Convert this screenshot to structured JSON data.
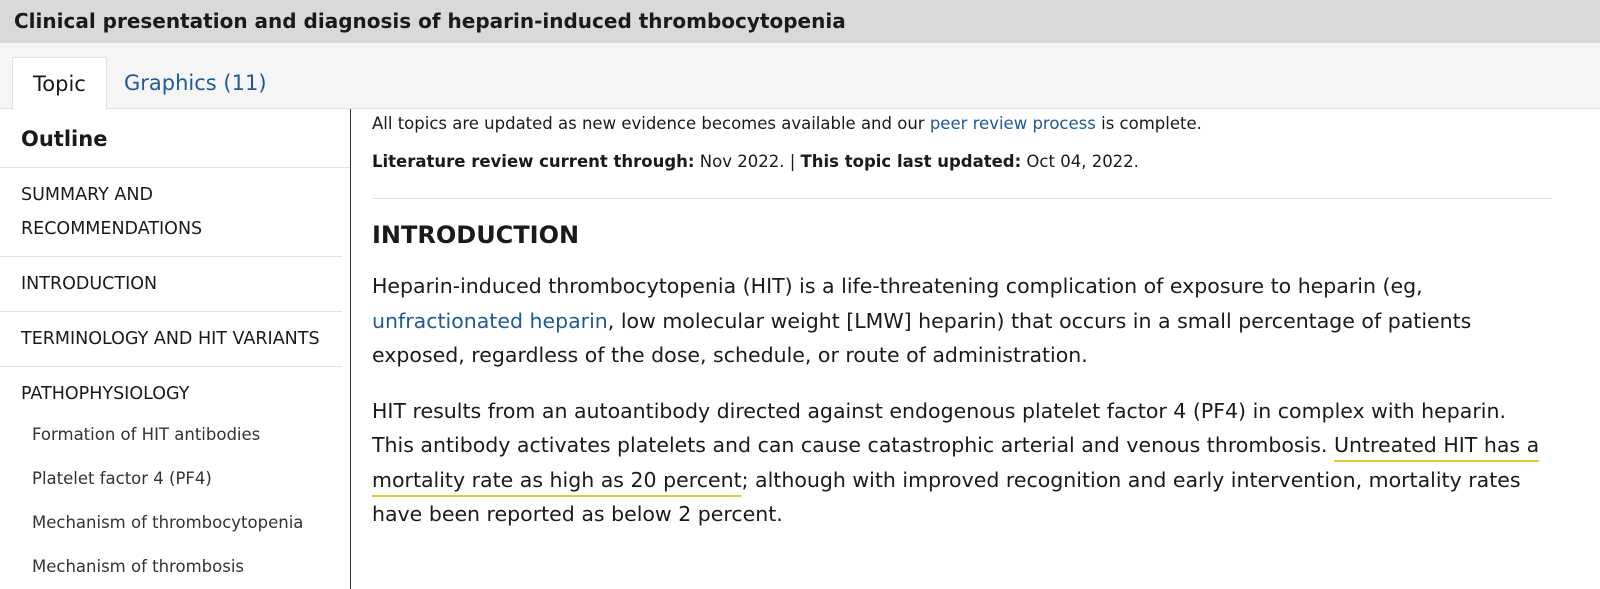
{
  "header": {
    "title": "Clinical presentation and diagnosis of heparin-induced thrombocytopenia"
  },
  "tabs": [
    "Topic",
    "Graphics (11)"
  ],
  "outline": {
    "title": "Outline",
    "items": [
      "SUMMARY AND RECOMMENDATIONS",
      "INTRODUCTION",
      "TERMINOLOGY AND HIT VARIANTS",
      "PATHOPHYSIOLOGY"
    ],
    "subitems": [
      "Formation of HIT antibodies",
      "Platelet factor 4 (PF4)",
      "Mechanism of thrombocytopenia",
      "Mechanism of thrombosis"
    ]
  },
  "content": {
    "notice": [
      "All topics are updated as new evidence becomes available and our ",
      "peer review process",
      " is complete."
    ],
    "dates": {
      "review_label": "Literature review current through:",
      "review_value": " Nov 2022. | ",
      "updated_label": "This topic last updated:",
      "updated_value": " Oct 04, 2022."
    },
    "heading": "INTRODUCTION",
    "paragraph1": [
      "Heparin-induced thrombocytopenia (HIT) is a life-threatening complication of exposure to heparin (eg, ",
      "unfractionated heparin",
      ", low molecular weight [LMW] heparin) that occurs in a small percentage of patients exposed, regardless of the dose, schedule, or route of administration."
    ],
    "paragraph2": [
      "HIT results from an autoantibody directed against endogenous platelet factor 4 (PF4) in complex with heparin. This antibody activates platelets and can cause catastrophic arterial and venous thrombosis. ",
      "Untreated HIT has a mortality rate as high as 20 percent",
      "; although with improved recognition and early intervention, mortality rates have been reported as below 2 percent."
    ]
  }
}
